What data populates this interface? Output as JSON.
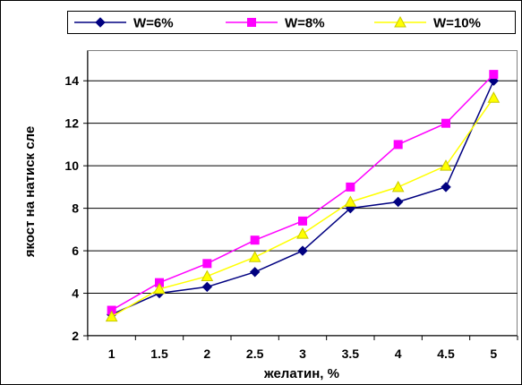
{
  "chart_data": {
    "type": "line",
    "title": "",
    "xlabel": "желатин, %",
    "ylabel": "якост на натиск сле",
    "x": [
      1,
      1.5,
      2,
      2.5,
      3,
      3.5,
      4,
      4.5,
      5
    ],
    "x_tick_labels": [
      "1",
      "1.5",
      "2",
      "2.5",
      "3",
      "3.5",
      "4",
      "4.5",
      "5"
    ],
    "y_ticks": [
      2,
      4,
      6,
      8,
      10,
      12,
      14
    ],
    "y_tick_labels": [
      "2",
      "4",
      "6",
      "8",
      "10",
      "12",
      "14"
    ],
    "ylim": [
      2,
      15.4
    ],
    "grid": true,
    "legend_position": "top",
    "series": [
      {
        "name": "W=6%",
        "color": "#000080",
        "marker": "diamond",
        "values": [
          3.0,
          4.0,
          4.3,
          5.0,
          6.0,
          8.0,
          8.3,
          9.0,
          14.0
        ]
      },
      {
        "name": "W=8%",
        "color": "#FF00FF",
        "marker": "square",
        "values": [
          3.2,
          4.5,
          5.4,
          6.5,
          7.4,
          9.0,
          11.0,
          12.0,
          14.3
        ]
      },
      {
        "name": "W=10%",
        "color": "#FFFF00",
        "marker": "triangle",
        "values": [
          2.9,
          4.2,
          4.8,
          5.7,
          6.8,
          8.3,
          9.0,
          10.0,
          13.2
        ]
      }
    ]
  }
}
